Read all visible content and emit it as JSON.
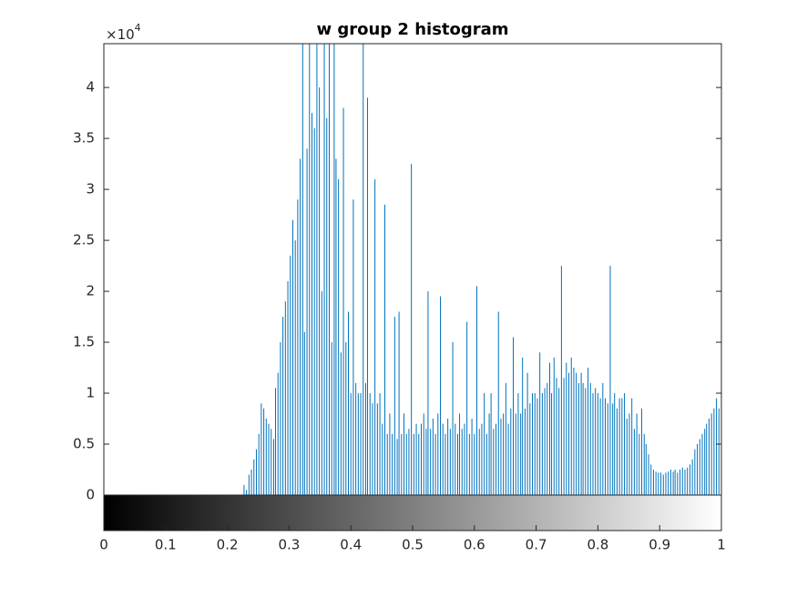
{
  "chart_data": {
    "type": "stem",
    "title": "w group 2 histogram",
    "y_scale_label": "×10",
    "y_exponent": 4,
    "color": "#0072bd",
    "xlim": [
      0,
      1
    ],
    "ylim": [
      0,
      4.43
    ],
    "xticks": [
      0,
      0.1,
      0.2,
      0.3,
      0.4,
      0.5,
      0.6,
      0.7,
      0.8,
      0.9,
      1
    ],
    "yticks": [
      0,
      0.5,
      1,
      1.5,
      2,
      2.5,
      3,
      3.5,
      4
    ],
    "colorbar": true,
    "x": [
      0,
      0.004,
      0.008,
      0.012,
      0.016,
      0.02,
      0.024,
      0.027,
      0.031,
      0.035,
      0.039,
      0.043,
      0.047,
      0.051,
      0.055,
      0.059,
      0.063,
      0.067,
      0.071,
      0.075,
      0.078,
      0.082,
      0.086,
      0.09,
      0.094,
      0.098,
      0.102,
      0.106,
      0.11,
      0.114,
      0.118,
      0.122,
      0.125,
      0.129,
      0.133,
      0.137,
      0.141,
      0.145,
      0.149,
      0.153,
      0.157,
      0.161,
      0.165,
      0.169,
      0.173,
      0.176,
      0.18,
      0.184,
      0.188,
      0.192,
      0.196,
      0.2,
      0.204,
      0.208,
      0.212,
      0.216,
      0.22,
      0.224,
      0.227,
      0.231,
      0.235,
      0.239,
      0.243,
      0.247,
      0.251,
      0.255,
      0.259,
      0.263,
      0.267,
      0.271,
      0.275,
      0.278,
      0.282,
      0.286,
      0.29,
      0.294,
      0.298,
      0.302,
      0.306,
      0.31,
      0.314,
      0.318,
      0.322,
      0.325,
      0.329,
      0.333,
      0.337,
      0.341,
      0.345,
      0.349,
      0.353,
      0.357,
      0.361,
      0.365,
      0.369,
      0.373,
      0.376,
      0.38,
      0.384,
      0.388,
      0.392,
      0.396,
      0.4,
      0.404,
      0.408,
      0.412,
      0.416,
      0.42,
      0.424,
      0.427,
      0.431,
      0.435,
      0.439,
      0.443,
      0.447,
      0.451,
      0.455,
      0.459,
      0.463,
      0.467,
      0.471,
      0.475,
      0.478,
      0.482,
      0.486,
      0.49,
      0.494,
      0.498,
      0.502,
      0.506,
      0.51,
      0.514,
      0.518,
      0.522,
      0.525,
      0.529,
      0.533,
      0.537,
      0.541,
      0.545,
      0.549,
      0.553,
      0.557,
      0.561,
      0.565,
      0.569,
      0.573,
      0.576,
      0.58,
      0.584,
      0.588,
      0.592,
      0.596,
      0.6,
      0.604,
      0.608,
      0.612,
      0.616,
      0.62,
      0.624,
      0.627,
      0.631,
      0.635,
      0.639,
      0.643,
      0.647,
      0.651,
      0.655,
      0.659,
      0.663,
      0.667,
      0.671,
      0.675,
      0.678,
      0.682,
      0.686,
      0.69,
      0.694,
      0.698,
      0.702,
      0.706,
      0.71,
      0.714,
      0.718,
      0.722,
      0.725,
      0.729,
      0.733,
      0.737,
      0.741,
      0.745,
      0.749,
      0.753,
      0.757,
      0.761,
      0.765,
      0.769,
      0.773,
      0.776,
      0.78,
      0.784,
      0.788,
      0.792,
      0.796,
      0.8,
      0.804,
      0.808,
      0.812,
      0.816,
      0.82,
      0.824,
      0.827,
      0.831,
      0.835,
      0.839,
      0.843,
      0.847,
      0.851,
      0.855,
      0.859,
      0.863,
      0.867,
      0.871,
      0.875,
      0.878,
      0.882,
      0.886,
      0.89,
      0.894,
      0.898,
      0.902,
      0.906,
      0.91,
      0.914,
      0.918,
      0.922,
      0.925,
      0.929,
      0.933,
      0.937,
      0.941,
      0.945,
      0.949,
      0.953,
      0.957,
      0.961,
      0.965,
      0.969,
      0.973,
      0.976,
      0.98,
      0.984,
      0.988,
      0.992,
      0.996,
      1
    ],
    "values": [
      0,
      0,
      0,
      0,
      0,
      0,
      0,
      0,
      0,
      0,
      0,
      0,
      0,
      0,
      0,
      0,
      0,
      0,
      0,
      0,
      0,
      0,
      0,
      0,
      0,
      0,
      0,
      0,
      0,
      0,
      0,
      0,
      0,
      0,
      0,
      0,
      0,
      0,
      0,
      0,
      0,
      0,
      0,
      0,
      0,
      0,
      0,
      0,
      0,
      0,
      0,
      0,
      0,
      0,
      0,
      0,
      0,
      0,
      0.1,
      0.05,
      0.2,
      0.25,
      0.35,
      0.45,
      0.6,
      0.9,
      0.85,
      0.75,
      0.7,
      0.65,
      0.55,
      1.05,
      1.2,
      1.5,
      1.75,
      1.9,
      2.1,
      2.35,
      2.7,
      2.5,
      2.9,
      3.3,
      4.5,
      1.6,
      3.4,
      4.5,
      3.75,
      3.6,
      4.5,
      4.0,
      2.0,
      4.5,
      3.7,
      4.5,
      1.5,
      4.5,
      3.3,
      3.1,
      1.4,
      3.8,
      1.5,
      1.8,
      1.0,
      2.9,
      1.1,
      1.0,
      1.0,
      4.5,
      1.1,
      3.9,
      1.0,
      0.9,
      3.1,
      0.9,
      1.0,
      0.7,
      2.85,
      0.6,
      0.8,
      0.6,
      1.75,
      0.55,
      1.8,
      0.6,
      0.8,
      0.6,
      0.65,
      3.25,
      0.6,
      0.7,
      0.6,
      0.7,
      0.8,
      0.65,
      2.0,
      0.65,
      0.75,
      0.6,
      0.8,
      1.95,
      0.7,
      0.6,
      0.75,
      0.65,
      1.5,
      0.7,
      0.6,
      0.8,
      0.65,
      0.7,
      1.7,
      0.6,
      0.75,
      0.6,
      2.05,
      0.65,
      0.7,
      1.0,
      0.6,
      0.8,
      1.0,
      0.65,
      0.7,
      1.8,
      0.75,
      0.8,
      1.1,
      0.7,
      0.85,
      1.55,
      0.8,
      1.0,
      0.8,
      1.35,
      0.85,
      1.2,
      0.9,
      1.0,
      1.0,
      0.95,
      1.4,
      1.0,
      1.05,
      1.1,
      1.3,
      1.0,
      1.35,
      1.15,
      1.05,
      2.25,
      1.15,
      1.3,
      1.2,
      1.35,
      1.25,
      1.2,
      1.1,
      1.2,
      1.1,
      1.05,
      1.25,
      1.1,
      1.0,
      1.05,
      1.0,
      0.95,
      1.1,
      0.95,
      0.9,
      2.25,
      0.9,
      1.0,
      0.85,
      0.95,
      0.95,
      1.0,
      0.75,
      0.8,
      0.95,
      0.65,
      0.8,
      0.6,
      0.85,
      0.6,
      0.5,
      0.4,
      0.3,
      0.25,
      0.23,
      0.22,
      0.22,
      0.2,
      0.22,
      0.23,
      0.25,
      0.23,
      0.25,
      0.22,
      0.25,
      0.27,
      0.25,
      0.27,
      0.3,
      0.35,
      0.45,
      0.5,
      0.55,
      0.6,
      0.65,
      0.7,
      0.75,
      0.8,
      0.85,
      0.95,
      0.85,
      0.45
    ]
  }
}
